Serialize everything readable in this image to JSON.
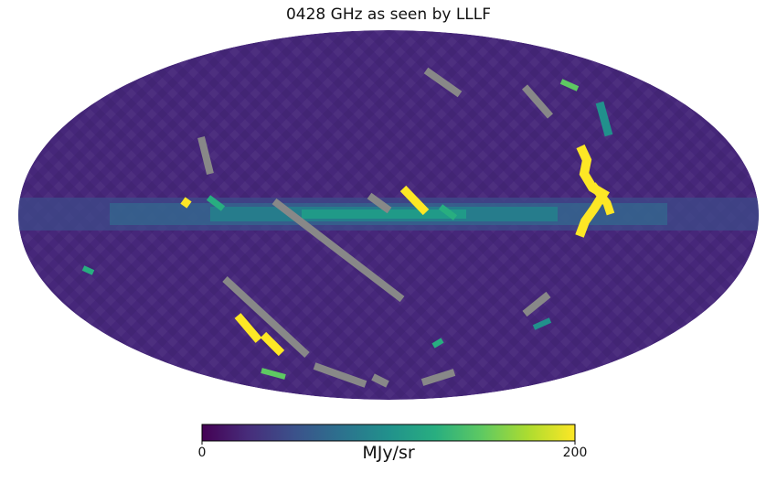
{
  "map": {
    "title": "0428 GHz as seen by LLLF",
    "projection": "mollweide",
    "colormap": "viridis",
    "bad_value_color": "#888888",
    "background_color": "#46277a",
    "plane_color": "#2c7a8c"
  },
  "colorbar": {
    "min": 0,
    "max": 200,
    "min_label": "0",
    "max_label": "200",
    "unit": "MJy/sr",
    "colors": [
      "#440154",
      "#472d7b",
      "#3b528b",
      "#2c728e",
      "#21918c",
      "#28ae80",
      "#5ec962",
      "#addc30",
      "#fde725"
    ]
  }
}
